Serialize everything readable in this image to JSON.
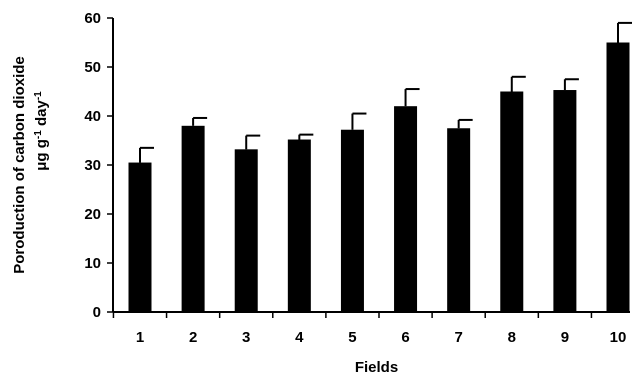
{
  "chart_data": {
    "type": "bar",
    "categories": [
      "1",
      "2",
      "3",
      "4",
      "5",
      "6",
      "7",
      "8",
      "9",
      "10"
    ],
    "values": [
      30.5,
      38,
      33.2,
      35.2,
      37.2,
      42,
      37.5,
      45,
      45.3,
      55
    ],
    "errors": [
      3,
      1.6,
      2.8,
      1,
      3.3,
      3.5,
      1.7,
      3,
      2.2,
      4
    ],
    "title": "",
    "xlabel": "Fields",
    "ylabel_line1": "Poroduction of carbon dioxide",
    "ylabel_line2_parts": [
      "μg g",
      "-1",
      " day",
      "-1"
    ],
    "ylim": [
      0,
      60
    ],
    "yticks": [
      "0",
      "10",
      "20",
      "30",
      "40",
      "50",
      "60"
    ],
    "bar_color": "#000000",
    "grid": false,
    "legend": "none"
  }
}
